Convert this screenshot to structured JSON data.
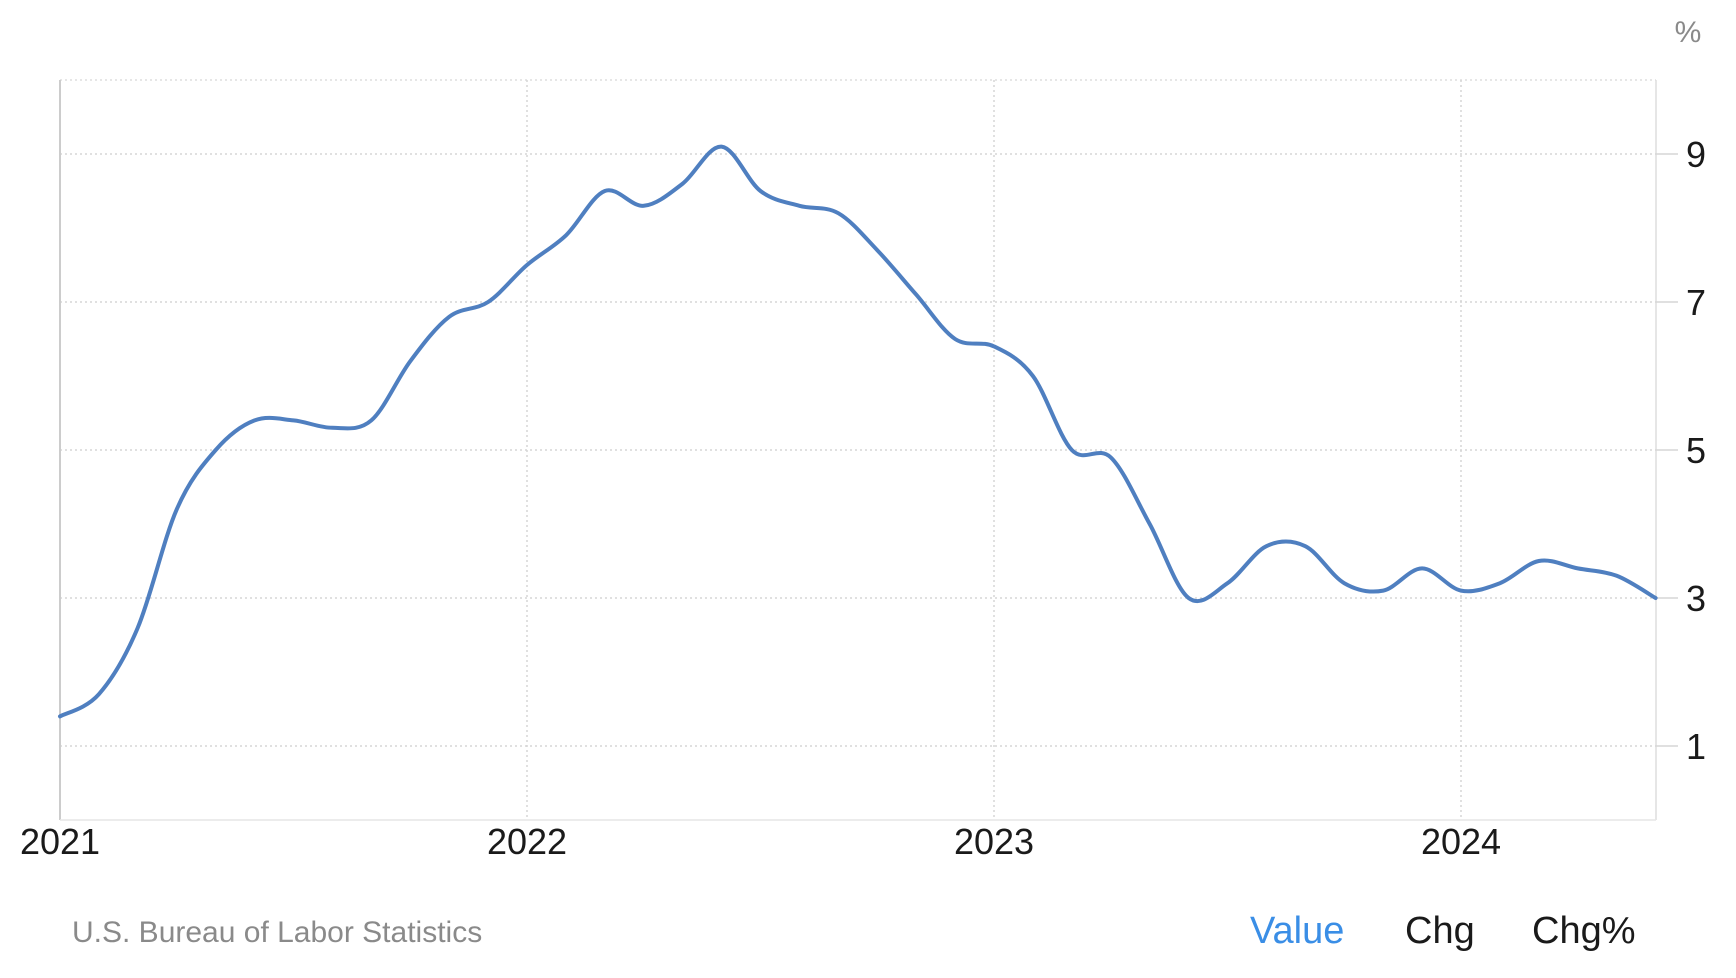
{
  "chart_data": {
    "type": "line",
    "unit": "%",
    "x_ticks": [
      "2021",
      "2022",
      "2023",
      "2024"
    ],
    "y_ticks": [
      1,
      3,
      5,
      7,
      9
    ],
    "xlim": [
      "2021-01",
      "2024-06"
    ],
    "ylim": [
      0,
      10
    ],
    "grid": true,
    "series": [
      {
        "color": "#4f7fc0",
        "points": [
          [
            "2021-01",
            1.4
          ],
          [
            "2021-02",
            1.7
          ],
          [
            "2021-03",
            2.6
          ],
          [
            "2021-04",
            4.2
          ],
          [
            "2021-05",
            5.0
          ],
          [
            "2021-06",
            5.4
          ],
          [
            "2021-07",
            5.4
          ],
          [
            "2021-08",
            5.3
          ],
          [
            "2021-09",
            5.4
          ],
          [
            "2021-10",
            6.2
          ],
          [
            "2021-11",
            6.8
          ],
          [
            "2021-12",
            7.0
          ],
          [
            "2022-01",
            7.5
          ],
          [
            "2022-02",
            7.9
          ],
          [
            "2022-03",
            8.5
          ],
          [
            "2022-04",
            8.3
          ],
          [
            "2022-05",
            8.6
          ],
          [
            "2022-06",
            9.1
          ],
          [
            "2022-07",
            8.5
          ],
          [
            "2022-08",
            8.3
          ],
          [
            "2022-09",
            8.2
          ],
          [
            "2022-10",
            7.7
          ],
          [
            "2022-11",
            7.1
          ],
          [
            "2022-12",
            6.5
          ],
          [
            "2023-01",
            6.4
          ],
          [
            "2023-02",
            6.0
          ],
          [
            "2023-03",
            5.0
          ],
          [
            "2023-04",
            4.9
          ],
          [
            "2023-05",
            4.0
          ],
          [
            "2023-06",
            3.0
          ],
          [
            "2023-07",
            3.2
          ],
          [
            "2023-08",
            3.7
          ],
          [
            "2023-09",
            3.7
          ],
          [
            "2023-10",
            3.2
          ],
          [
            "2023-11",
            3.1
          ],
          [
            "2023-12",
            3.4
          ],
          [
            "2024-01",
            3.1
          ],
          [
            "2024-02",
            3.2
          ],
          [
            "2024-03",
            3.5
          ],
          [
            "2024-04",
            3.4
          ],
          [
            "2024-05",
            3.3
          ],
          [
            "2024-06",
            3.0
          ]
        ]
      }
    ]
  },
  "footer": {
    "source": "U.S. Bureau of Labor Statistics",
    "tabs": [
      {
        "label": "Value",
        "active": true
      },
      {
        "label": "Chg",
        "active": false
      },
      {
        "label": "Chg%",
        "active": false
      }
    ]
  }
}
